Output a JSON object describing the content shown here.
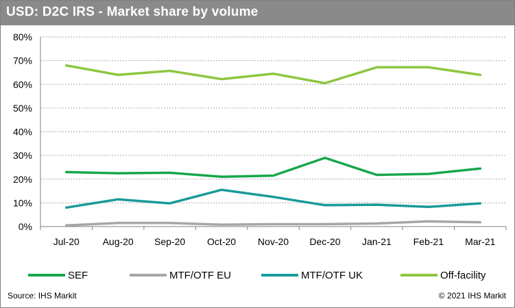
{
  "title": "USD: D2C IRS - Market share by volume",
  "footer": {
    "source": "Source: IHS Markit",
    "copyright": "© 2021 IHS Markit"
  },
  "chart_data": {
    "type": "line",
    "title": "USD: D2C IRS - Market share by volume",
    "xlabel": "",
    "ylabel": "",
    "categories": [
      "Jul-20",
      "Aug-20",
      "Sep-20",
      "Oct-20",
      "Nov-20",
      "Dec-20",
      "Jan-21",
      "Feb-21",
      "Mar-21"
    ],
    "ylim": [
      0,
      80
    ],
    "yticks": [
      0,
      10,
      20,
      30,
      40,
      50,
      60,
      70,
      80
    ],
    "ytick_labels": [
      "0%",
      "10%",
      "20%",
      "30%",
      "40%",
      "50%",
      "60%",
      "70%",
      "80%"
    ],
    "grid": true,
    "legend_position": "bottom",
    "series": [
      {
        "name": "SEF",
        "color": "#17a64a",
        "values": [
          23,
          22.5,
          22.7,
          21,
          21.5,
          29,
          21.8,
          22.2,
          24.5
        ]
      },
      {
        "name": "MTF/OTF EU",
        "color": "#a6a6a6",
        "values": [
          0.5,
          1.5,
          1.5,
          0.8,
          1,
          1,
          1.3,
          2.2,
          1.8
        ]
      },
      {
        "name": "MTF/OTF UK",
        "color": "#1a9a9a",
        "values": [
          8,
          11.5,
          9.8,
          15.5,
          12.5,
          9,
          9.2,
          8.3,
          9.8
        ]
      },
      {
        "name": "Off-facility",
        "color": "#8dc63f",
        "values": [
          68,
          64,
          65.7,
          62.2,
          64.5,
          60.5,
          67.2,
          67.2,
          64
        ]
      }
    ]
  }
}
